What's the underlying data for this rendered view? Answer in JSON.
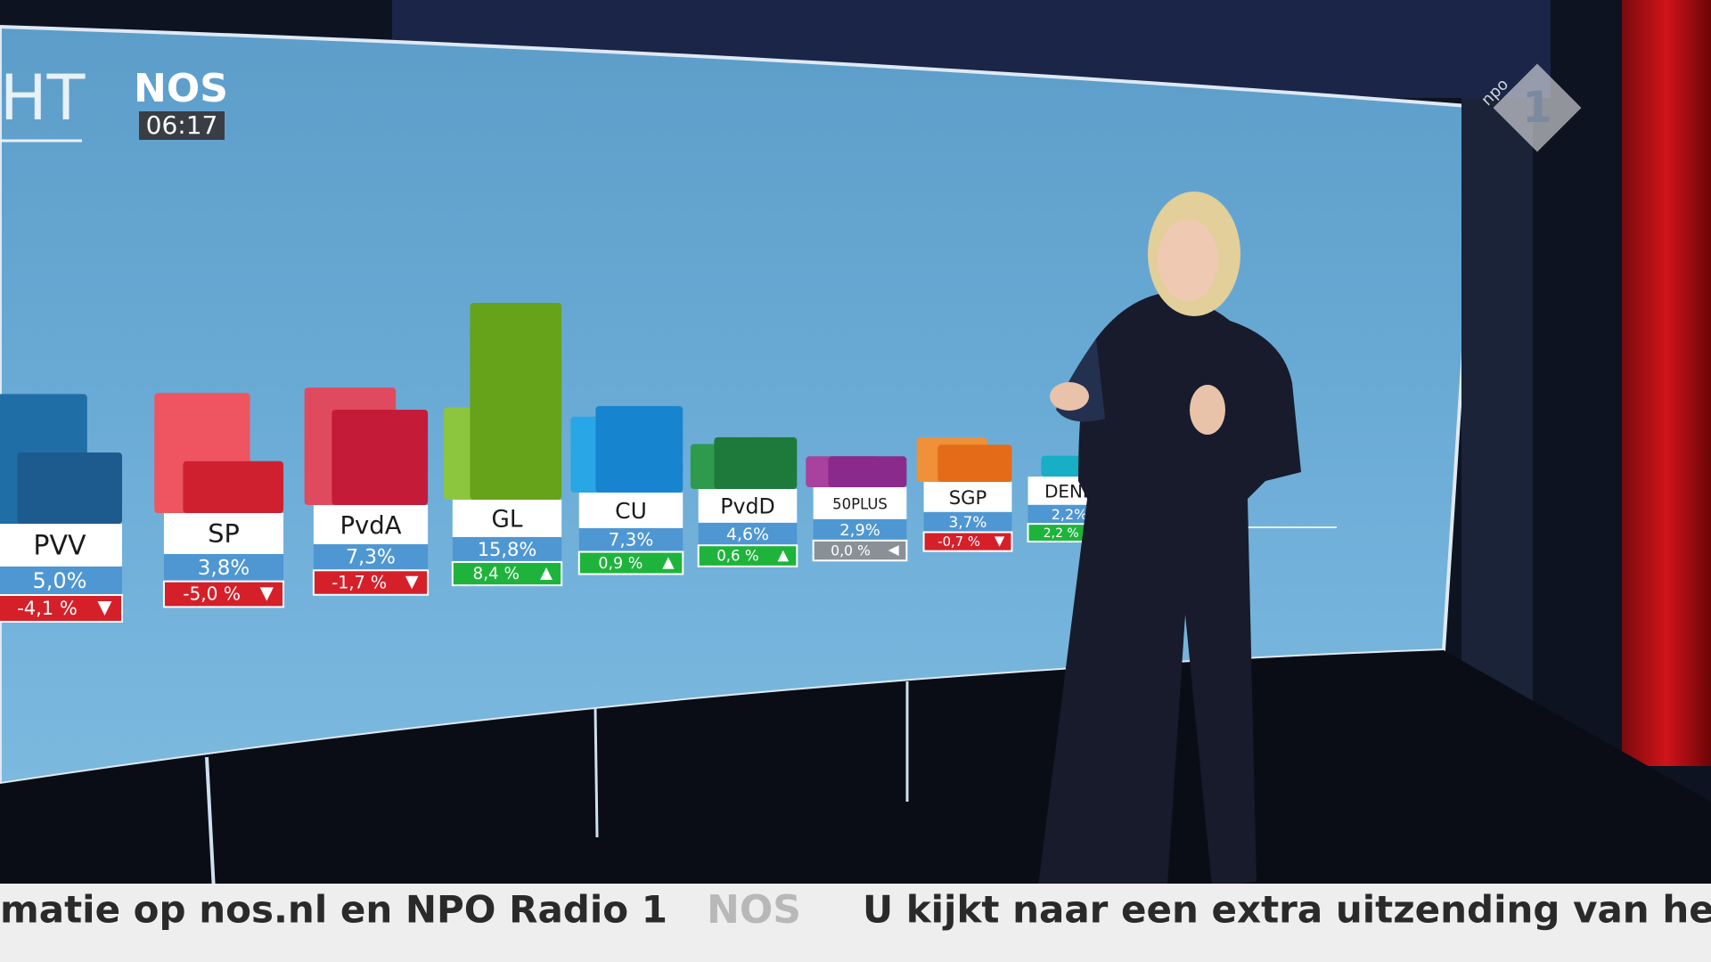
{
  "header": {
    "logo": "NOS",
    "time": "06:17",
    "wall_title": "HT",
    "channel_brand": "npo",
    "channel_number": "1"
  },
  "chart_data": {
    "type": "bar",
    "categories": [
      "PVV",
      "SP",
      "PvdA",
      "GL",
      "CU",
      "PvdD",
      "50PLUS",
      "SGP",
      "DENK"
    ],
    "values": [
      5.0,
      3.8,
      7.3,
      15.8,
      7.3,
      4.6,
      2.9,
      3.7,
      2.2
    ],
    "value_labels": [
      "5,0%",
      "3,8%",
      "7,3%",
      "15,8%",
      "7,3%",
      "4,6%",
      "2,9%",
      "3,7%",
      "2,2%"
    ],
    "previous": [
      9.1,
      8.8,
      9.0,
      7.4,
      6.4,
      4.0,
      2.9,
      4.4,
      0
    ],
    "changes": [
      -4.1,
      -5.0,
      -1.7,
      8.4,
      0.9,
      0.6,
      0.0,
      -0.7,
      2.2
    ],
    "change_labels": [
      "-4,1 %",
      "-5,0 %",
      "-1,7 %",
      "8,4 %",
      "0,9 %",
      "0,6 %",
      "0,0 %",
      "-0,7 %",
      "2,2 %"
    ],
    "colors": [
      "#1d5a8e",
      "#cf2030",
      "#c41c38",
      "#66a31a",
      "#1784d0",
      "#1d7a3a",
      "#8a2a8c",
      "#e46c18",
      "#17aec6"
    ],
    "previous_colors": [
      "#1f6fa6",
      "#ee5560",
      "#e04a5e",
      "#8cc63f",
      "#28a6e6",
      "#2e9a4c",
      "#a8429e",
      "#f09038",
      "#3ec8d8"
    ],
    "up_color": "#1eb43c",
    "down_color": "#d5202a",
    "flat_color": "#8a9196"
  },
  "ticker": {
    "left": "matie op nos.nl en NPO Radio 1",
    "logo": "NOS",
    "right": "U kijkt naar een extra uitzending van het"
  }
}
